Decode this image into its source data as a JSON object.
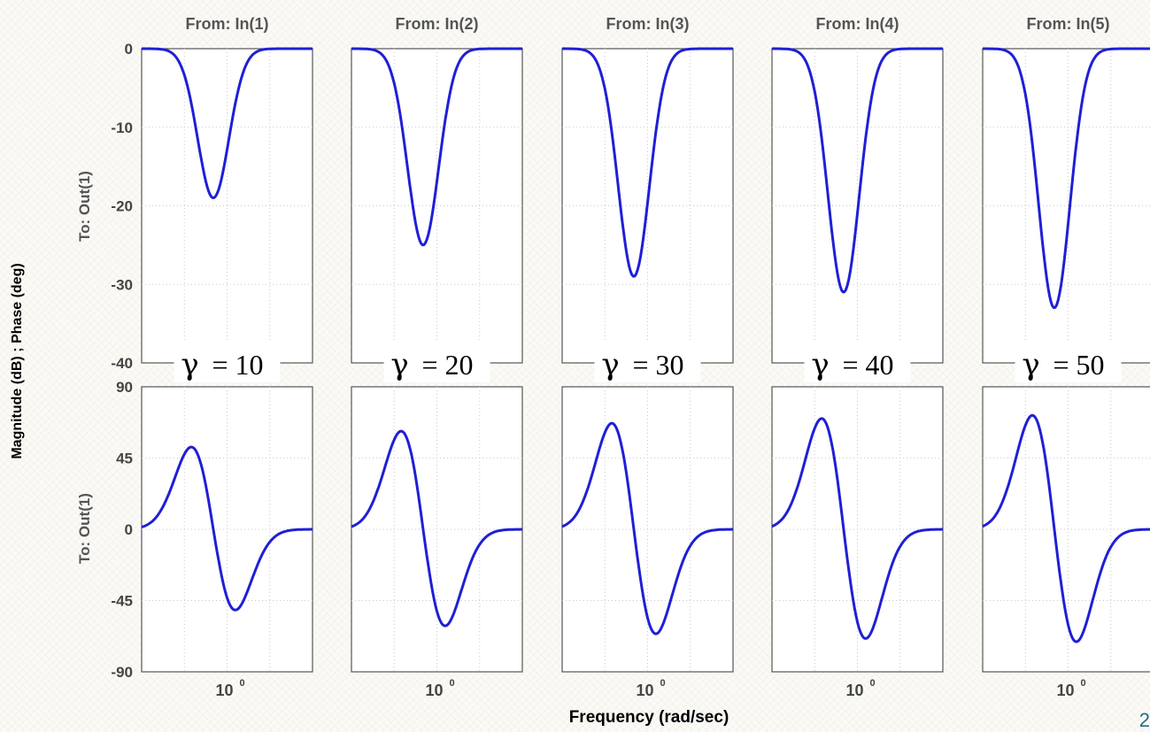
{
  "chart_data": {
    "type": "line",
    "xlabel": "Frequency  (rad/sec)",
    "ylabel": "Magnitude (dB) ; Phase (deg)",
    "row_labels": [
      "To: Out(1)",
      "To: Out(1)"
    ],
    "x_scale": "log",
    "x_tick_label": "10",
    "x_tick_exponent": "0",
    "xlim": [
      0.25,
      4
    ],
    "line_color": "#1f1fd6",
    "magnitude_ylim": [
      -40,
      0
    ],
    "magnitude_yticks": [
      "0",
      "-10",
      "-20",
      "-30",
      "-40"
    ],
    "phase_ylim": [
      -90,
      90
    ],
    "phase_yticks": [
      "90",
      "45",
      "0",
      "-45",
      "-90"
    ],
    "panels": [
      {
        "title": "From: In(1)",
        "gamma_label": "= 10",
        "magnitude_min_db": -19,
        "phase_min_deg": -51,
        "phase_max_deg": 52
      },
      {
        "title": "From: In(2)",
        "gamma_label": "= 20",
        "magnitude_min_db": -25,
        "phase_min_deg": -61,
        "phase_max_deg": 62
      },
      {
        "title": "From: In(3)",
        "gamma_label": "= 30",
        "magnitude_min_db": -29,
        "phase_min_deg": -66,
        "phase_max_deg": 67
      },
      {
        "title": "From: In(4)",
        "gamma_label": "= 40",
        "magnitude_min_db": -31,
        "phase_min_deg": -69,
        "phase_max_deg": 70
      },
      {
        "title": "From: In(5)",
        "gamma_label": "= 50",
        "magnitude_min_db": -33,
        "phase_min_deg": -71,
        "phase_max_deg": 72
      }
    ]
  },
  "page_number": "2"
}
